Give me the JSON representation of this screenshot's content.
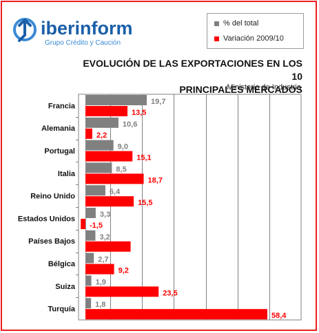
{
  "brand": {
    "name": "iberinform",
    "tagline": "Grupo Crédito y Caución",
    "colors": {
      "blue": "#1a5fa8",
      "light_blue": "#3a8ad6"
    }
  },
  "colors": {
    "frame": "#ee1c1c",
    "series_total": "#808080",
    "series_variation": "#ff0000",
    "grid": "#808080"
  },
  "chart_data": {
    "type": "bar",
    "orientation": "horizontal",
    "title": "EVOLUCIÓN DE LAS EXPORTACIONES EN LOS 10 PRINCIPALES MERCADOS",
    "title_lines": [
      "EVOLUCIÓN DE LAS EXPORTACIONES EN LOS 10",
      "PRINCIPALES MERCADOS"
    ],
    "subtitle": "Ministerio de Industria",
    "categories": [
      "Francia",
      "Alemania",
      "Portugal",
      "Italia",
      "Reino Unido",
      "Estados Unidos",
      "Países Bajos",
      "Bélgica",
      "Suiza",
      "Turquía"
    ],
    "series": [
      {
        "name": "% del total",
        "color": "#808080",
        "values": [
          19.7,
          10.6,
          9.0,
          8.5,
          6.4,
          3.3,
          3.2,
          2.7,
          1.9,
          1.8
        ],
        "labels": [
          "19,7",
          "10,6",
          "9,0",
          "8,5",
          "6,4",
          "3,3",
          "3,2",
          "2,7",
          "1,9",
          "1,8"
        ]
      },
      {
        "name": "Variación 2009/10",
        "color": "#ff0000",
        "values": [
          13.5,
          2.2,
          15.1,
          18.7,
          15.5,
          -1.5,
          14.5,
          9.2,
          23.5,
          58.4
        ],
        "labels": [
          "13,5",
          "2,2",
          "15,1",
          "18,7",
          "15,5",
          "-1,5",
          "",
          "9,2",
          "23,5",
          "58,4"
        ]
      }
    ],
    "xlim": [
      -1.5,
      60
    ],
    "grid": true,
    "legend": "top-right"
  }
}
